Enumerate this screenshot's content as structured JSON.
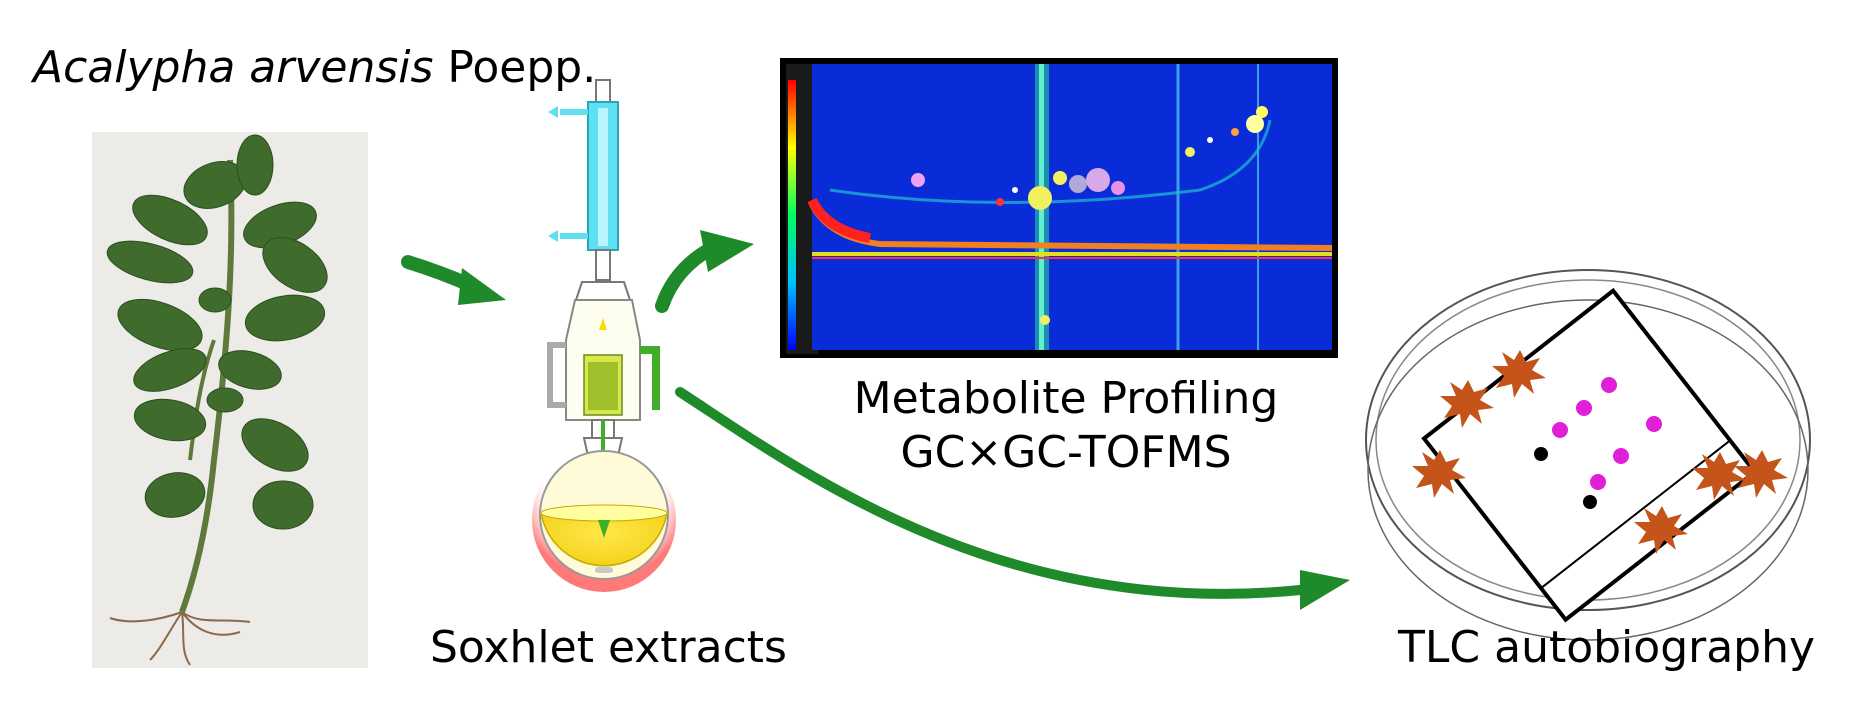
{
  "species": {
    "genus_species": "Acalypha arvensis",
    "authority": "Poepp."
  },
  "labels": {
    "soxhlet": "Soxhlet extracts",
    "profiling_line1": "Metabolite Profiling",
    "profiling_line2": "GC×GC-TOFMS",
    "tlc": "TLC autobiography"
  },
  "colors": {
    "arrow": "#1e8a2a",
    "plant_leaf": "#3f6b2c",
    "chromatogram_bg": "#0a2bd8",
    "tlc_spot_pink": "#e020d8",
    "tlc_spot_black": "#000000",
    "fungal_colony": "#c4541a",
    "flask_liquid": "#f2f24a",
    "condenser": "#5fe0f0"
  },
  "icons": [
    "plant-photo",
    "soxhlet-apparatus",
    "gcxgc-chromatogram",
    "petri-dish-tlc-plate"
  ]
}
